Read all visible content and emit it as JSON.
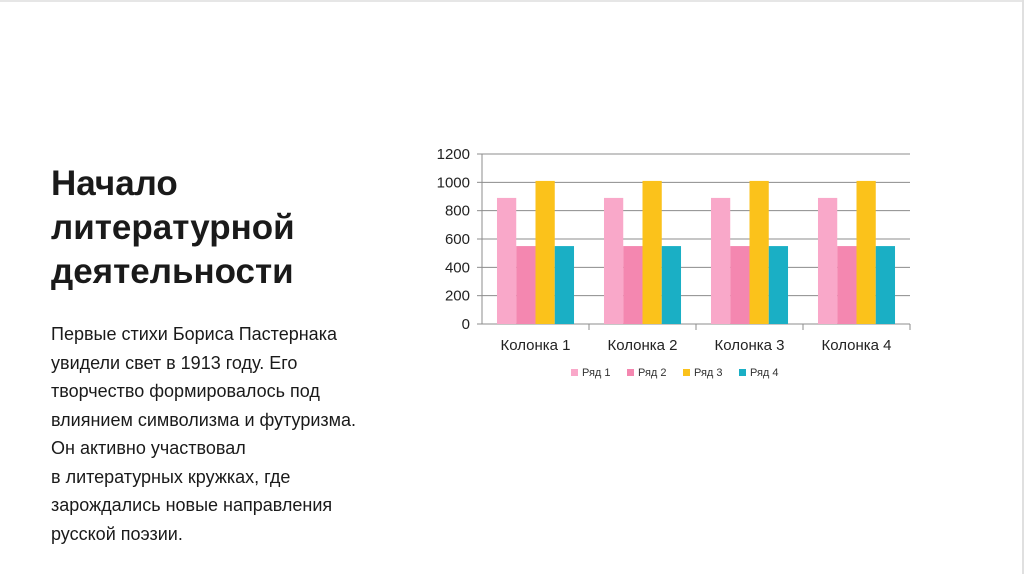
{
  "slide": {
    "title_lines": [
      "Начало",
      "литературной",
      "деятельности"
    ],
    "body_lines": [
      "Первые стихи Бориса Пастернака",
      "увидели свет в 1913 году. Его",
      "творчество формировалось под",
      "влиянием символизма и футуризма.",
      "Он активно участвовал",
      "в литературных кружках, где",
      "зарождались новые направления",
      "русской поэзии."
    ]
  },
  "chart_data": {
    "type": "bar",
    "categories": [
      "Колонка 1",
      "Колонка 2",
      "Колонка 3",
      "Колонка 4"
    ],
    "series": [
      {
        "name": "Ряд 1",
        "color": "#f9a8c9",
        "values": [
          890,
          890,
          890,
          890
        ]
      },
      {
        "name": "Ряд 2",
        "color": "#f487b0",
        "values": [
          550,
          550,
          550,
          550
        ]
      },
      {
        "name": "Ряд 3",
        "color": "#fbc21b",
        "values": [
          1010,
          1010,
          1010,
          1010
        ]
      },
      {
        "name": "Ряд 4",
        "color": "#1aafc5",
        "values": [
          550,
          550,
          550,
          550
        ]
      }
    ],
    "yticks": [
      "0",
      "200",
      "400",
      "600",
      "800",
      "1000",
      "1200"
    ],
    "ylim": [
      0,
      1200
    ],
    "grid": true,
    "legend": "bottom"
  }
}
